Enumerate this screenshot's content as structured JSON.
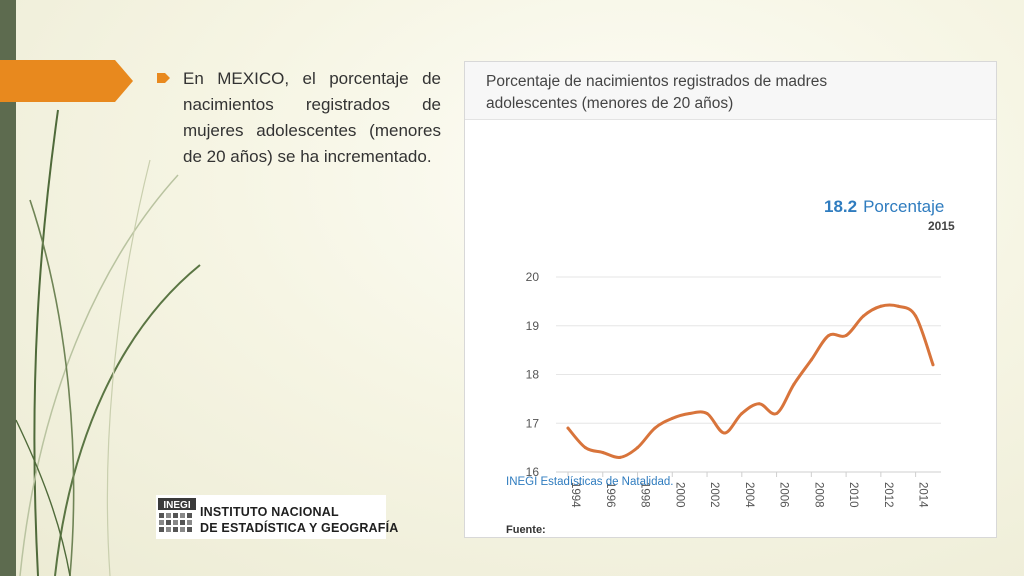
{
  "slide": {
    "bullet_text": "En MEXICO, el porcentaje de nacimientos registrados de mujeres adolescentes (menores de 20 años) se ha incrementado."
  },
  "panel": {
    "title_line1": "Porcentaje de nacimientos registrados de madres",
    "title_line2": "adolescentes (menores de 20 años)",
    "highlight_value": "18.2",
    "highlight_unit": "Porcentaje",
    "highlight_year": "2015",
    "source_label": "Fuente:",
    "source_text": "INEGI Estadísticas de Natalidad."
  },
  "logo": {
    "mark_text": "INEGI",
    "line1": "INSTITUTO NACIONAL",
    "line2": "DE ESTADÍSTICA Y GEOGRAFÍA"
  },
  "colors": {
    "line": "#d8743b",
    "accent_blue": "#2f7cbf",
    "orange_tab": "#e8891e",
    "left_bar": "#5d6b4f"
  },
  "chart_data": {
    "type": "line",
    "title": "Porcentaje de nacimientos registrados de madres adolescentes (menores de 20 años)",
    "xlabel": "",
    "ylabel": "",
    "x": [
      1994,
      1995,
      1996,
      1997,
      1998,
      1999,
      2000,
      2001,
      2002,
      2003,
      2004,
      2005,
      2006,
      2007,
      2008,
      2009,
      2010,
      2011,
      2012,
      2013,
      2014,
      2015
    ],
    "values": [
      16.9,
      16.5,
      16.4,
      16.3,
      16.5,
      16.9,
      17.1,
      17.2,
      17.2,
      16.8,
      17.2,
      17.4,
      17.2,
      17.8,
      18.3,
      18.8,
      18.8,
      19.2,
      19.4,
      19.4,
      19.2,
      18.2
    ],
    "x_ticks": [
      "1994",
      "1996",
      "1998",
      "2000",
      "2002",
      "2004",
      "2006",
      "2008",
      "2010",
      "2012",
      "2014"
    ],
    "y_ticks": [
      "16",
      "17",
      "18",
      "19",
      "20"
    ],
    "ylim": [
      16,
      20
    ],
    "xlim": [
      1994,
      2015
    ],
    "grid": true,
    "legend": "none"
  }
}
